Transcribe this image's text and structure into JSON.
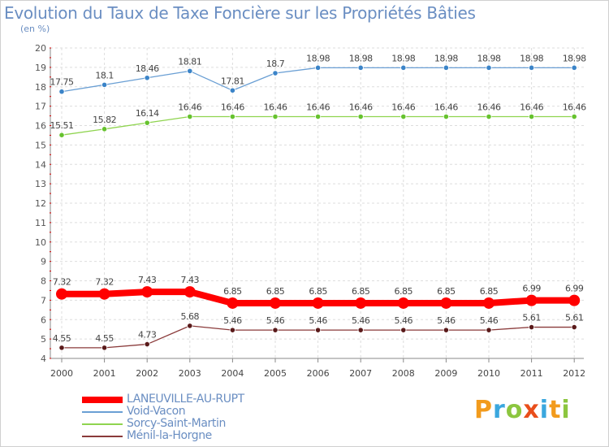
{
  "title": "Evolution du Taux de Taxe Foncière sur les Propriétés Bâties",
  "subtitle": "(en %)",
  "logo": {
    "text": "Proxiti",
    "colors": [
      "#f29b1d",
      "#3aa7de",
      "#8cc63f",
      "#e94e1b",
      "#3aa7de",
      "#f29b1d",
      "#8cc63f"
    ]
  },
  "chart_data": {
    "type": "line",
    "title": "Evolution du Taux de Taxe Foncière sur les Propriétés Bâties",
    "ylabel": "(en %)",
    "xlabel": "",
    "x": [
      "2000",
      "2001",
      "2002",
      "2003",
      "2004",
      "2005",
      "2006",
      "2007",
      "2008",
      "2009",
      "2010",
      "2011",
      "2012"
    ],
    "ylim": [
      4,
      20
    ],
    "yticks": [
      "4",
      "5",
      "6",
      "7",
      "8",
      "9",
      "10",
      "11",
      "12",
      "13",
      "14",
      "15",
      "16",
      "17",
      "18",
      "19",
      "20"
    ],
    "grid": true,
    "legend_position": "bottom-left",
    "series": [
      {
        "name": "LANEUVILLE-AU-RUPT",
        "color": "#ff0000",
        "values": [
          7.32,
          7.32,
          7.43,
          7.43,
          6.85,
          6.85,
          6.85,
          6.85,
          6.85,
          6.85,
          6.85,
          6.99,
          6.99
        ],
        "labels": [
          "7.32",
          "7.32",
          "7.43",
          "7.43",
          "6.85",
          "6.85",
          "6.85",
          "6.85",
          "6.85",
          "6.85",
          "6.85",
          "6.99",
          "6.99"
        ]
      },
      {
        "name": "Void-Vacon",
        "color": "#6a9fd4",
        "values": [
          17.75,
          18.1,
          18.46,
          18.81,
          17.81,
          18.7,
          18.98,
          18.98,
          18.98,
          18.98,
          18.98,
          18.98,
          18.98
        ],
        "labels": [
          "17.75",
          "18.1",
          "18.46",
          "18.81",
          "17.81",
          "18.7",
          "18.98",
          "18.98",
          "18.98",
          "18.98",
          "18.98",
          "18.98",
          "18.98"
        ]
      },
      {
        "name": "Sorcy-Saint-Martin",
        "color": "#8fd44f",
        "values": [
          15.51,
          15.82,
          16.14,
          16.46,
          16.46,
          16.46,
          16.46,
          16.46,
          16.46,
          16.46,
          16.46,
          16.46,
          16.46
        ],
        "labels": [
          "15.51",
          "15.82",
          "16.14",
          "16.46",
          "16.46",
          "16.46",
          "16.46",
          "16.46",
          "16.46",
          "16.46",
          "16.46",
          "16.46",
          "16.46"
        ]
      },
      {
        "name": "Ménil-la-Horgne",
        "color": "#7a2a2a",
        "values": [
          4.55,
          4.55,
          4.73,
          5.68,
          5.46,
          5.46,
          5.46,
          5.46,
          5.46,
          5.46,
          5.46,
          5.61,
          5.61
        ],
        "labels": [
          "4.55",
          "4.55",
          "4.73",
          "5.68",
          "5.46",
          "5.46",
          "5.46",
          "5.46",
          "5.46",
          "5.46",
          "5.46",
          "5.61",
          "5.61"
        ]
      }
    ]
  }
}
